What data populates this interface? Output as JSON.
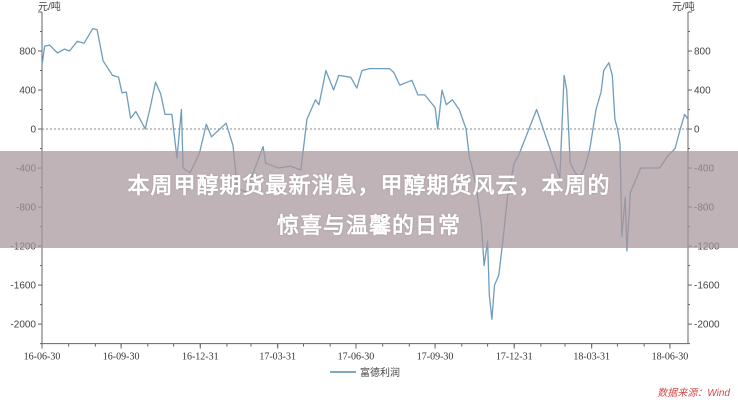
{
  "chart_data": {
    "type": "line",
    "title": "",
    "ylabel_left": "元/吨",
    "ylabel_right": "元/吨",
    "ylim": [
      -2200,
      1200
    ],
    "yticks": [
      800,
      400,
      0,
      -400,
      -800,
      -1200,
      -1600,
      -2000
    ],
    "xlim": [
      "2016-06-30",
      "2018-07-21"
    ],
    "xticks": [
      "16-06-30",
      "16-09-30",
      "16-12-31",
      "17-03-31",
      "17-06-30",
      "17-09-30",
      "17-12-31",
      "18-03-31",
      "18-06-30"
    ],
    "xtick_dates": [
      "2016-06-30",
      "2016-09-30",
      "2016-12-31",
      "2017-03-31",
      "2017-06-30",
      "2017-09-30",
      "2017-12-31",
      "2018-03-31",
      "2018-06-30"
    ],
    "zero_line": "dotted",
    "grid": false,
    "legend_position": "bottom",
    "series": [
      {
        "name": "富德利润",
        "color": "#6f9dbd",
        "points": [
          [
            "2016-06-30",
            650
          ],
          [
            "2016-07-03",
            850
          ],
          [
            "2016-07-09",
            860
          ],
          [
            "2016-07-18",
            780
          ],
          [
            "2016-07-26",
            820
          ],
          [
            "2016-08-01",
            800
          ],
          [
            "2016-08-10",
            900
          ],
          [
            "2016-08-18",
            880
          ],
          [
            "2016-08-28",
            1030
          ],
          [
            "2016-09-02",
            1020
          ],
          [
            "2016-09-09",
            700
          ],
          [
            "2016-09-20",
            550
          ],
          [
            "2016-09-27",
            530
          ],
          [
            "2016-10-01",
            370
          ],
          [
            "2016-10-06",
            380
          ],
          [
            "2016-10-11",
            110
          ],
          [
            "2016-10-17",
            180
          ],
          [
            "2016-10-22",
            100
          ],
          [
            "2016-10-28",
            0
          ],
          [
            "2016-11-03",
            230
          ],
          [
            "2016-11-09",
            480
          ],
          [
            "2016-11-15",
            360
          ],
          [
            "2016-11-20",
            150
          ],
          [
            "2016-11-28",
            150
          ],
          [
            "2016-12-04",
            -300
          ],
          [
            "2016-12-09",
            200
          ],
          [
            "2016-12-11",
            -400
          ],
          [
            "2016-12-19",
            -450
          ],
          [
            "2016-12-30",
            -250
          ],
          [
            "2017-01-07",
            50
          ],
          [
            "2017-01-13",
            -80
          ],
          [
            "2017-01-30",
            60
          ],
          [
            "2017-02-07",
            -170
          ],
          [
            "2017-02-12",
            -600
          ],
          [
            "2017-02-22",
            -650
          ],
          [
            "2017-03-14",
            -180
          ],
          [
            "2017-03-17",
            -350
          ],
          [
            "2017-04-01",
            -400
          ],
          [
            "2017-04-15",
            -380
          ],
          [
            "2017-04-27",
            -420
          ],
          [
            "2017-05-04",
            100
          ],
          [
            "2017-05-14",
            300
          ],
          [
            "2017-05-18",
            250
          ],
          [
            "2017-05-26",
            600
          ],
          [
            "2017-06-04",
            400
          ],
          [
            "2017-06-10",
            550
          ],
          [
            "2017-06-24",
            530
          ],
          [
            "2017-07-01",
            420
          ],
          [
            "2017-07-07",
            600
          ],
          [
            "2017-07-16",
            620
          ],
          [
            "2017-08-08",
            620
          ],
          [
            "2017-08-13",
            580
          ],
          [
            "2017-08-20",
            450
          ],
          [
            "2017-09-03",
            500
          ],
          [
            "2017-09-10",
            350
          ],
          [
            "2017-09-18",
            350
          ],
          [
            "2017-09-30",
            220
          ],
          [
            "2017-10-03",
            0
          ],
          [
            "2017-10-08",
            400
          ],
          [
            "2017-10-13",
            250
          ],
          [
            "2017-10-20",
            300
          ],
          [
            "2017-10-28",
            200
          ],
          [
            "2017-11-05",
            0
          ],
          [
            "2017-11-09",
            -300
          ],
          [
            "2017-11-11",
            -350
          ],
          [
            "2017-11-17",
            -600
          ],
          [
            "2017-11-20",
            -800
          ],
          [
            "2017-11-23",
            -1000
          ],
          [
            "2017-11-26",
            -1400
          ],
          [
            "2017-11-30",
            -1150
          ],
          [
            "2017-12-02",
            -1700
          ],
          [
            "2017-12-05",
            -1950
          ],
          [
            "2017-12-08",
            -1600
          ],
          [
            "2017-12-13",
            -1500
          ],
          [
            "2017-12-19",
            -1050
          ],
          [
            "2017-12-23",
            -700
          ],
          [
            "2017-12-31",
            -350
          ],
          [
            "2018-01-06",
            -250
          ],
          [
            "2018-01-26",
            200
          ],
          [
            "2018-02-22",
            -500
          ],
          [
            "2018-02-27",
            550
          ],
          [
            "2018-03-02",
            400
          ],
          [
            "2018-03-06",
            -350
          ],
          [
            "2018-03-12",
            -450
          ],
          [
            "2018-03-17",
            -500
          ],
          [
            "2018-03-23",
            -400
          ],
          [
            "2018-03-29",
            -200
          ],
          [
            "2018-04-05",
            200
          ],
          [
            "2018-04-11",
            380
          ],
          [
            "2018-04-14",
            600
          ],
          [
            "2018-04-20",
            680
          ],
          [
            "2018-04-24",
            550
          ],
          [
            "2018-04-27",
            100
          ],
          [
            "2018-04-30",
            0
          ],
          [
            "2018-05-03",
            -150
          ],
          [
            "2018-05-04",
            -620
          ],
          [
            "2018-05-05",
            -1100
          ],
          [
            "2018-05-09",
            -700
          ],
          [
            "2018-05-11",
            -1250
          ],
          [
            "2018-05-15",
            -650
          ],
          [
            "2018-05-27",
            -400
          ],
          [
            "2018-06-05",
            -400
          ],
          [
            "2018-06-18",
            -400
          ],
          [
            "2018-06-28",
            -270
          ],
          [
            "2018-07-06",
            -200
          ],
          [
            "2018-07-12",
            0
          ],
          [
            "2018-07-17",
            150
          ],
          [
            "2018-07-21",
            100
          ]
        ]
      }
    ],
    "source": "数据来源：Wind"
  },
  "banner": {
    "line1": "本周甲醇期货最新消息，甲醇期货风云，本周的",
    "line2": "惊喜与温馨的日常",
    "color": "#a8969b"
  }
}
